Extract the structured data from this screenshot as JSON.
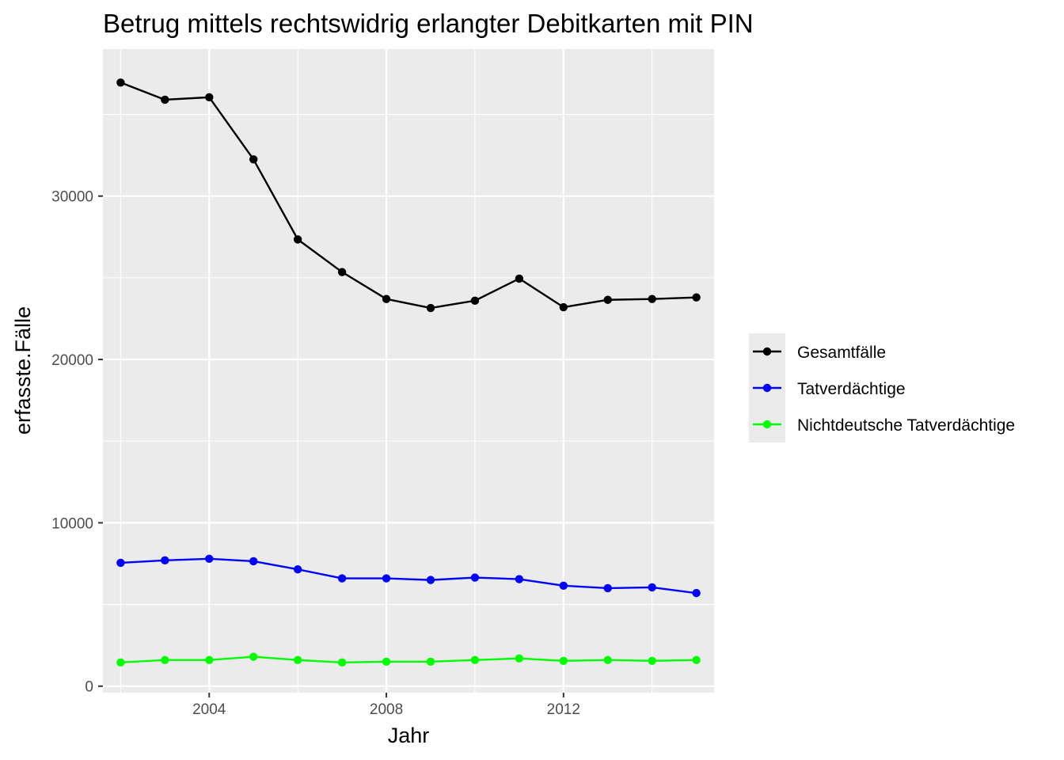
{
  "chart_data": {
    "type": "line",
    "title": "Betrug mittels rechtswidrig erlangter Debitkarten mit PIN",
    "xlabel": "Jahr",
    "ylabel": "erfasste.Fälle",
    "x": [
      2002,
      2003,
      2004,
      2005,
      2006,
      2007,
      2008,
      2009,
      2010,
      2011,
      2012,
      2013,
      2014,
      2015
    ],
    "xlim": [
      2001.6,
      2015.4
    ],
    "ylim": [
      -400,
      39000
    ],
    "xticks": [
      2004,
      2008,
      2012
    ],
    "xtick_labels": [
      "2004",
      "2008",
      "2012"
    ],
    "yticks": [
      0,
      10000,
      20000,
      30000
    ],
    "ytick_labels": [
      "0",
      "10000",
      "20000",
      "30000"
    ],
    "grid": true,
    "legend_position": "right",
    "series": [
      {
        "name": "Gesamtfälle",
        "color": "#000000",
        "values": [
          36950,
          35900,
          36050,
          32250,
          27350,
          25350,
          23700,
          23150,
          23600,
          24950,
          23200,
          23650,
          23700,
          23800
        ]
      },
      {
        "name": "Tatverdächtige",
        "color": "#0000ff",
        "values": [
          7550,
          7700,
          7800,
          7650,
          7150,
          6600,
          6600,
          6500,
          6650,
          6550,
          6150,
          6000,
          6050,
          5700
        ]
      },
      {
        "name": "Nichtdeutsche Tatverdächtige",
        "color": "#00ff00",
        "values": [
          1450,
          1600,
          1600,
          1800,
          1600,
          1450,
          1500,
          1500,
          1600,
          1700,
          1550,
          1600,
          1550,
          1600
        ]
      }
    ]
  }
}
